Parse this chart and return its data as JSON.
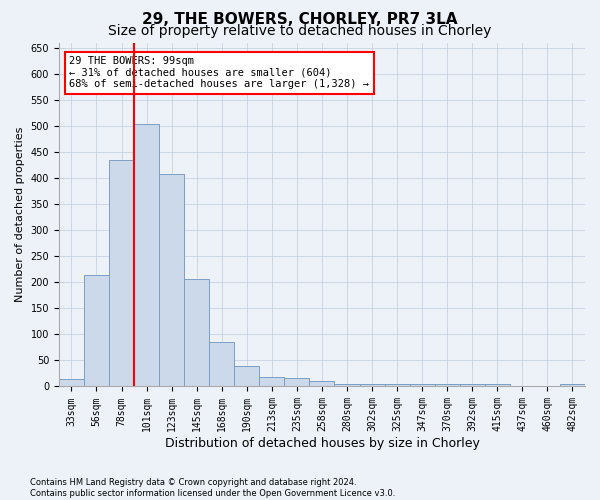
{
  "title1": "29, THE BOWERS, CHORLEY, PR7 3LA",
  "title2": "Size of property relative to detached houses in Chorley",
  "xlabel": "Distribution of detached houses by size in Chorley",
  "ylabel": "Number of detached properties",
  "categories": [
    "33sqm",
    "56sqm",
    "78sqm",
    "101sqm",
    "123sqm",
    "145sqm",
    "168sqm",
    "190sqm",
    "213sqm",
    "235sqm",
    "258sqm",
    "280sqm",
    "302sqm",
    "325sqm",
    "347sqm",
    "370sqm",
    "392sqm",
    "415sqm",
    "437sqm",
    "460sqm",
    "482sqm"
  ],
  "values": [
    15,
    213,
    435,
    503,
    408,
    207,
    85,
    40,
    18,
    17,
    10,
    5,
    4,
    4,
    4,
    4,
    4,
    4,
    0,
    0,
    4
  ],
  "bar_color": "#ccd9ea",
  "bar_edge_color": "#7a9ec5",
  "annotation_text": "29 THE BOWERS: 99sqm\n← 31% of detached houses are smaller (604)\n68% of semi-detached houses are larger (1,328) →",
  "annotation_box_color": "white",
  "annotation_box_edge_color": "red",
  "vline_color": "red",
  "vline_x_index": 3.5,
  "ylim": [
    0,
    660
  ],
  "yticks": [
    0,
    50,
    100,
    150,
    200,
    250,
    300,
    350,
    400,
    450,
    500,
    550,
    600,
    650
  ],
  "footer_line1": "Contains HM Land Registry data © Crown copyright and database right 2024.",
  "footer_line2": "Contains public sector information licensed under the Open Government Licence v3.0.",
  "background_color": "#edf2f9",
  "plot_background_color": "#edf2f9",
  "grid_color": "#c0ccdd",
  "title1_fontsize": 11,
  "title2_fontsize": 10,
  "xlabel_fontsize": 9,
  "ylabel_fontsize": 8,
  "tick_fontsize": 7,
  "annotation_fontsize": 7.5
}
